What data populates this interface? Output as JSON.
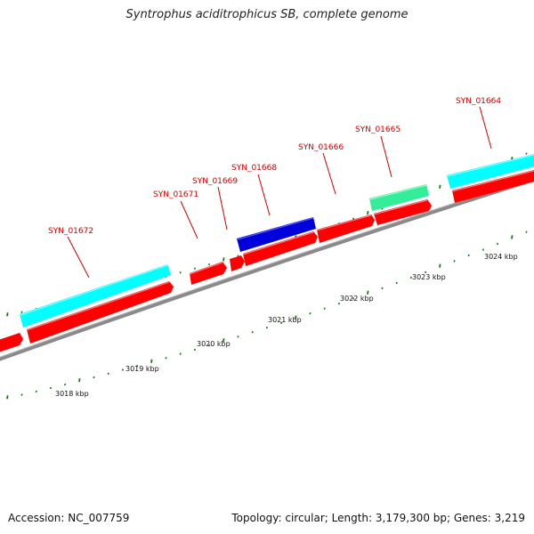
{
  "title": "Syntrophus aciditrophicus SB, complete genome",
  "footer": {
    "accession": "Accession: NC_007759",
    "topology": "Topology: circular; Length: 3,179,300 bp; Genes: 3,219"
  },
  "colors": {
    "forward_cds": "#ff0000",
    "reverse_cds": "#ff0000",
    "cyan_feature": "#00ffff",
    "blue_feature": "#0000dd",
    "green_feature": "#33ee99",
    "backbone": "#888888",
    "tick": "#1a7a1a",
    "label": "#d00000"
  },
  "gene_labels": [
    "SYN_01672",
    "SYN_01671",
    "SYN_01669",
    "SYN_01668",
    "SYN_01666",
    "SYN_01665",
    "SYN_01664"
  ],
  "kbp_labels": [
    "3018 kbp",
    "3019 kbp",
    "3020 kbp",
    "3021 kbp",
    "3022 kbp",
    "3023 kbp",
    "3024 kbp"
  ]
}
